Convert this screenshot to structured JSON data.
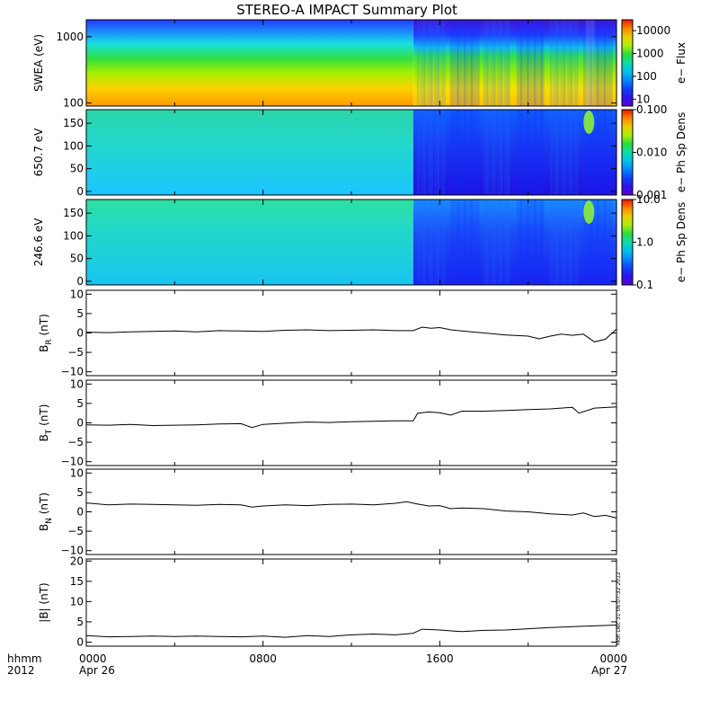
{
  "title": "STEREO-A IMPACT Summary Plot",
  "timestamp": "Mon Dec 31 06:07:32 2012",
  "x_axis": {
    "row_label_1": "hhmm",
    "row_label_2": "2012",
    "ticks": [
      {
        "hour": 0,
        "label": "0000",
        "date": "Apr 26"
      },
      {
        "hour": 8,
        "label": "0800",
        "date": ""
      },
      {
        "hour": 16,
        "label": "1600",
        "date": ""
      },
      {
        "hour": 24,
        "label": "0000",
        "date": "Apr 27"
      }
    ],
    "range_hours": [
      0,
      24
    ]
  },
  "chart_data": [
    {
      "type": "heatmap",
      "name": "swea",
      "ylabel": "SWEA (eV)",
      "yscale": "log",
      "ylim": [
        90,
        1800
      ],
      "yticks": [
        {
          "v": 100,
          "label": "100"
        },
        {
          "v": 1000,
          "label": "1000"
        }
      ],
      "colorbar": {
        "label": "e− Flux",
        "scale": "log",
        "range": [
          5,
          30000
        ],
        "ticks": [
          {
            "v": 10,
            "label": "10"
          },
          {
            "v": 100,
            "label": "100"
          },
          {
            "v": 1000,
            "label": "1000"
          },
          {
            "v": 10000,
            "label": "10000"
          }
        ]
      },
      "transition_hour": 14.8
    },
    {
      "type": "heatmap",
      "name": "pad-650",
      "ylabel": "650.7 eV",
      "yscale": "linear",
      "ylim": [
        -8,
        180
      ],
      "yticks": [
        {
          "v": 0,
          "label": "0"
        },
        {
          "v": 50,
          "label": "50"
        },
        {
          "v": 100,
          "label": "100"
        },
        {
          "v": 150,
          "label": "150"
        }
      ],
      "colorbar": {
        "label": "e− Ph Sp Dens",
        "scale": "log",
        "range": [
          0.001,
          0.1
        ],
        "ticks": [
          {
            "v": 0.001,
            "label": "0.001"
          },
          {
            "v": 0.01,
            "label": "0.010"
          },
          {
            "v": 0.1,
            "label": "0.100"
          }
        ]
      },
      "transition_hour": 14.8
    },
    {
      "type": "heatmap",
      "name": "pad-246",
      "ylabel": "246.6 eV",
      "yscale": "linear",
      "ylim": [
        -8,
        180
      ],
      "yticks": [
        {
          "v": 0,
          "label": "0"
        },
        {
          "v": 50,
          "label": "50"
        },
        {
          "v": 100,
          "label": "100"
        },
        {
          "v": 150,
          "label": "150"
        }
      ],
      "colorbar": {
        "label": "e− Ph Sp Dens",
        "scale": "log",
        "range": [
          0.1,
          10
        ],
        "ticks": [
          {
            "v": 0.1,
            "label": "0.1"
          },
          {
            "v": 1,
            "label": "1.0"
          },
          {
            "v": 10,
            "label": "10.0"
          }
        ]
      },
      "transition_hour": 14.8
    },
    {
      "type": "line",
      "name": "br",
      "ylabel_main": "B",
      "ylabel_sub": "R",
      "ylabel_unit": " (nT)",
      "ylim": [
        -11,
        11
      ],
      "yticks": [
        {
          "v": -10,
          "label": "−10"
        },
        {
          "v": -5,
          "label": "−5"
        },
        {
          "v": 0,
          "label": "0"
        },
        {
          "v": 5,
          "label": "5"
        },
        {
          "v": 10,
          "label": "10"
        }
      ],
      "x": [
        0,
        1,
        2,
        3,
        4,
        5,
        6,
        7,
        8,
        9,
        10,
        11,
        12,
        13,
        14,
        14.8,
        15.2,
        15.6,
        16,
        16.5,
        17,
        18,
        19,
        20,
        20.5,
        21,
        21.5,
        22,
        22.5,
        23,
        23.5,
        24
      ],
      "y": [
        0.2,
        0.1,
        0.3,
        0.4,
        0.5,
        0.3,
        0.6,
        0.5,
        0.4,
        0.7,
        0.8,
        0.6,
        0.7,
        0.8,
        0.6,
        0.6,
        1.5,
        1.2,
        1.4,
        0.8,
        0.5,
        0,
        -0.5,
        -0.8,
        -1.5,
        -0.8,
        -0.3,
        -0.6,
        -0.3,
        -2.3,
        -1.6,
        1.0
      ]
    },
    {
      "type": "line",
      "name": "bt",
      "ylabel_main": "B",
      "ylabel_sub": "T",
      "ylabel_unit": " (nT)",
      "ylim": [
        -11,
        11
      ],
      "yticks": [
        {
          "v": -10,
          "label": "−10"
        },
        {
          "v": -5,
          "label": "−5"
        },
        {
          "v": 0,
          "label": "0"
        },
        {
          "v": 5,
          "label": "5"
        },
        {
          "v": 10,
          "label": "10"
        }
      ],
      "x": [
        0,
        1,
        2,
        3,
        4,
        5,
        6,
        7,
        7.5,
        8,
        9,
        10,
        11,
        12,
        13,
        14,
        14.8,
        15,
        15.5,
        16,
        16.5,
        17,
        18,
        19,
        20,
        21,
        22,
        22.3,
        23,
        24
      ],
      "y": [
        -0.5,
        -0.6,
        -0.4,
        -0.7,
        -0.6,
        -0.5,
        -0.3,
        -0.2,
        -1.2,
        -0.4,
        -0.1,
        0.2,
        0.1,
        0.3,
        0.4,
        0.5,
        0.5,
        2.5,
        2.8,
        2.6,
        2.0,
        3.0,
        3.0,
        3.2,
        3.4,
        3.6,
        4.0,
        2.5,
        3.8,
        4.1
      ]
    },
    {
      "type": "line",
      "name": "bn",
      "ylabel_main": "B",
      "ylabel_sub": "N",
      "ylabel_unit": " (nT)",
      "ylim": [
        -11,
        11
      ],
      "yticks": [
        {
          "v": -10,
          "label": "−10"
        },
        {
          "v": -5,
          "label": "−5"
        },
        {
          "v": 0,
          "label": "0"
        },
        {
          "v": 5,
          "label": "5"
        },
        {
          "v": 10,
          "label": "10"
        }
      ],
      "x": [
        0,
        1,
        2,
        3,
        4,
        5,
        6,
        7,
        7.5,
        8,
        9,
        10,
        11,
        12,
        13,
        14,
        14.5,
        15,
        15.5,
        16,
        16.5,
        17,
        18,
        19,
        20,
        21,
        22,
        22.5,
        23,
        23.5,
        24
      ],
      "y": [
        2.3,
        1.8,
        2.0,
        1.9,
        1.8,
        1.7,
        1.9,
        1.8,
        1.2,
        1.5,
        1.8,
        1.6,
        1.9,
        2.0,
        1.8,
        2.2,
        2.6,
        2.0,
        1.5,
        1.6,
        0.8,
        1.0,
        0.8,
        0.2,
        0.0,
        -0.5,
        -0.8,
        -0.3,
        -1.2,
        -0.9,
        -1.6
      ]
    },
    {
      "type": "line",
      "name": "bmag",
      "ylabel_main": "|B| (nT)",
      "ylabel_sub": "",
      "ylabel_unit": "",
      "ylim": [
        -1,
        20.5
      ],
      "yticks": [
        {
          "v": 0,
          "label": "0"
        },
        {
          "v": 5,
          "label": "5"
        },
        {
          "v": 10,
          "label": "10"
        },
        {
          "v": 15,
          "label": "15"
        },
        {
          "v": 20,
          "label": "20"
        }
      ],
      "x": [
        0,
        1,
        2,
        3,
        4,
        5,
        6,
        7,
        8,
        9,
        10,
        11,
        12,
        13,
        14,
        14.8,
        15.2,
        16,
        17,
        18,
        19,
        20,
        21,
        22,
        23,
        24
      ],
      "y": [
        1.6,
        1.3,
        1.4,
        1.5,
        1.4,
        1.5,
        1.4,
        1.3,
        1.5,
        1.2,
        1.6,
        1.4,
        1.8,
        2.0,
        1.8,
        2.2,
        3.2,
        3.0,
        2.6,
        2.9,
        3.0,
        3.3,
        3.6,
        3.8,
        4.0,
        4.2
      ]
    }
  ],
  "colors": {
    "pre_flux_top": "#1e3cff",
    "post_flux_top": "#4410d8",
    "pad_pre_high": "#2ad6a8",
    "pad_pre_low": "#1cc4ff",
    "pad_post": "#1a32f0",
    "pad_spot": "#8cf036"
  }
}
